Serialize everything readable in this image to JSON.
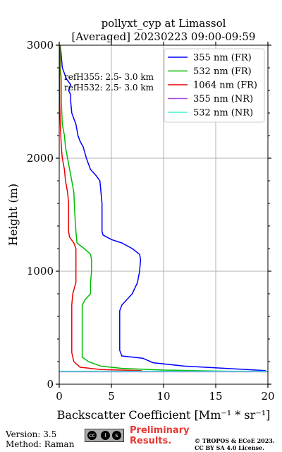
{
  "footer": {
    "version": "Version: 3.5",
    "method": "Method: Raman",
    "license_badge": [
      "cc",
      "i",
      "s"
    ],
    "preliminary_line1": "Preliminary",
    "preliminary_line2": "Results.",
    "copyright_line1": "© TROPOS & ECoE 2023.",
    "copyright_line2": "CC BY SA 4.0 License."
  },
  "chart_data": {
    "type": "line",
    "title_line1": "pollyxt_cyp at Limassol",
    "title_line2": "[Averaged] 20230223 09:00-09:59",
    "xlabel": "Backscatter Coefficient [Mm⁻¹ * sr⁻¹]",
    "ylabel": "Height (m)",
    "xlim": [
      0,
      20
    ],
    "ylim": [
      0,
      3000
    ],
    "x_ticks": [
      0,
      5,
      10,
      15,
      20
    ],
    "y_ticks": [
      0,
      1000,
      2000,
      3000
    ],
    "grid": true,
    "legend_placement": "top-right",
    "annotations": [
      "refH355:  2.5- 3.0 km",
      "refH532:  2.5- 3.0 km"
    ],
    "series": [
      {
        "name": "355 nm (FR)",
        "color": "#0000ff",
        "points": [
          [
            19.8,
            120
          ],
          [
            16,
            140
          ],
          [
            12,
            160
          ],
          [
            9,
            190
          ],
          [
            8,
            230
          ],
          [
            6,
            250
          ],
          [
            5.8,
            300
          ],
          [
            5.8,
            500
          ],
          [
            5.8,
            650
          ],
          [
            6,
            700
          ],
          [
            6.3,
            730
          ],
          [
            7,
            800
          ],
          [
            7.5,
            900
          ],
          [
            7.7,
            1000
          ],
          [
            7.8,
            1100
          ],
          [
            7.7,
            1150
          ],
          [
            7,
            1200
          ],
          [
            6,
            1250
          ],
          [
            5,
            1280
          ],
          [
            4.2,
            1320
          ],
          [
            4.1,
            1350
          ],
          [
            4.1,
            1450
          ],
          [
            4.1,
            1600
          ],
          [
            4,
            1700
          ],
          [
            3.9,
            1800
          ],
          [
            3.5,
            1850
          ],
          [
            3,
            1900
          ],
          [
            2.6,
            2000
          ],
          [
            2.3,
            2100
          ],
          [
            2,
            2150
          ],
          [
            1.8,
            2200
          ],
          [
            1.6,
            2300
          ],
          [
            1.4,
            2350
          ],
          [
            1.2,
            2400
          ],
          [
            1.1,
            2500
          ],
          [
            1.1,
            2560
          ],
          [
            0.9,
            2600
          ],
          [
            1.1,
            2650
          ],
          [
            0.7,
            2700
          ],
          [
            0.5,
            2750
          ],
          [
            0.3,
            2800
          ],
          [
            0.2,
            2900
          ],
          [
            0.1,
            3000
          ]
        ]
      },
      {
        "name": "532 nm (FR)",
        "color": "#00bb00",
        "points": [
          [
            20,
            110
          ],
          [
            16,
            115
          ],
          [
            10,
            125
          ],
          [
            6,
            140
          ],
          [
            4,
            160
          ],
          [
            2.8,
            200
          ],
          [
            2.2,
            240
          ],
          [
            2.2,
            300
          ],
          [
            2.2,
            500
          ],
          [
            2.2,
            700
          ],
          [
            2.5,
            750
          ],
          [
            3,
            800
          ],
          [
            3,
            900
          ],
          [
            3.1,
            1000
          ],
          [
            3.1,
            1100
          ],
          [
            3,
            1150
          ],
          [
            2.4,
            1200
          ],
          [
            1.7,
            1250
          ],
          [
            1.6,
            1350
          ],
          [
            1.5,
            1500
          ],
          [
            1.4,
            1700
          ],
          [
            1.2,
            1800
          ],
          [
            1,
            1900
          ],
          [
            0.8,
            2000
          ],
          [
            0.6,
            2100
          ],
          [
            0.5,
            2200
          ],
          [
            0.3,
            2300
          ],
          [
            0.2,
            2500
          ],
          [
            0.2,
            2700
          ],
          [
            0.1,
            2800
          ],
          [
            0.1,
            3000
          ]
        ]
      },
      {
        "name": "1064 nm (FR)",
        "color": "#ee0000",
        "points": [
          [
            7.9,
            120
          ],
          [
            4,
            130
          ],
          [
            2,
            150
          ],
          [
            1.4,
            200
          ],
          [
            1.3,
            240
          ],
          [
            1.2,
            280
          ],
          [
            1.2,
            500
          ],
          [
            1.2,
            700
          ],
          [
            1.3,
            800
          ],
          [
            1.6,
            900
          ],
          [
            1.6,
            1000
          ],
          [
            1.6,
            1100
          ],
          [
            1.6,
            1200
          ],
          [
            1.4,
            1250
          ],
          [
            1,
            1300
          ],
          [
            0.9,
            1350
          ],
          [
            0.9,
            1500
          ],
          [
            0.9,
            1600
          ],
          [
            0.8,
            1700
          ],
          [
            0.6,
            1800
          ],
          [
            0.5,
            1900
          ],
          [
            0.3,
            2000
          ],
          [
            0.2,
            2100
          ],
          [
            0.1,
            2300
          ],
          [
            0.05,
            2500
          ],
          [
            0.05,
            3000
          ]
        ]
      },
      {
        "name": "355 nm (NR)",
        "color": "#a64de0",
        "points": [
          [
            0,
            110
          ],
          [
            20,
            110
          ]
        ]
      },
      {
        "name": "532 nm (NR)",
        "color": "#40f0d0",
        "points": [
          [
            0,
            115
          ],
          [
            20,
            115
          ]
        ]
      }
    ]
  }
}
